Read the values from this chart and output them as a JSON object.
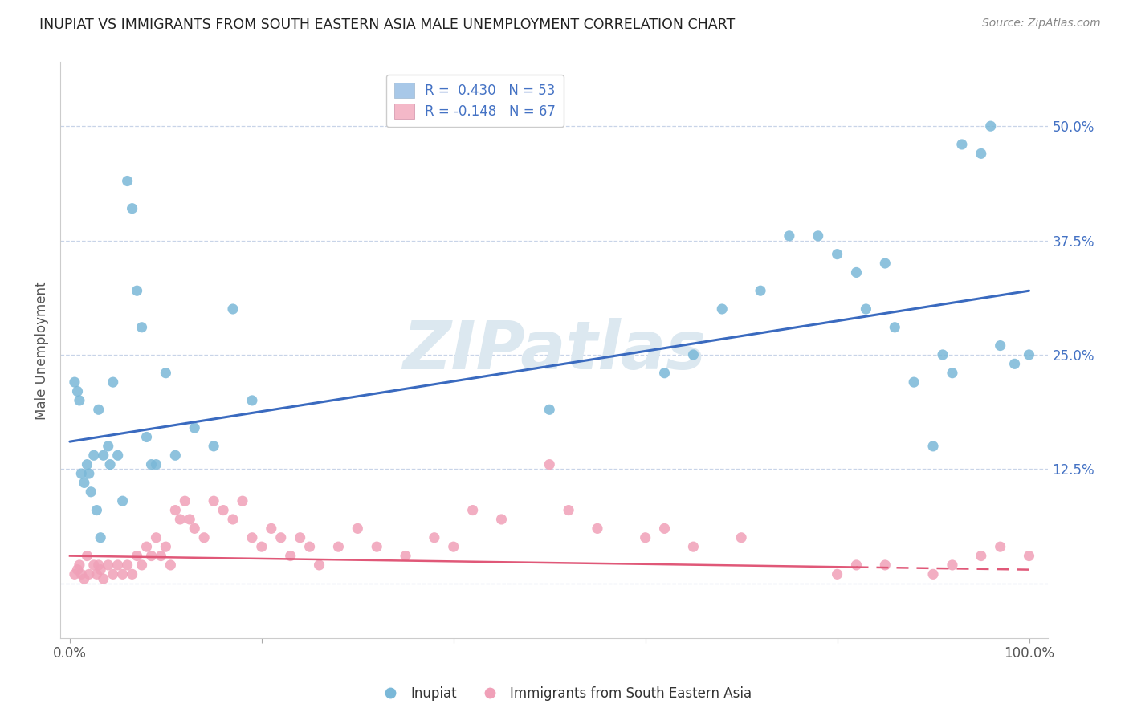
{
  "title": "INUPIAT VS IMMIGRANTS FROM SOUTH EASTERN ASIA MALE UNEMPLOYMENT CORRELATION CHART",
  "source": "Source: ZipAtlas.com",
  "ylabel": "Male Unemployment",
  "xlim": [
    -0.01,
    1.02
  ],
  "ylim": [
    -0.06,
    0.57
  ],
  "x_ticks": [
    0.0,
    0.2,
    0.4,
    0.6,
    0.8,
    1.0
  ],
  "x_tick_labels": [
    "0.0%",
    "",
    "",
    "",
    "",
    "100.0%"
  ],
  "y_ticks": [
    0.0,
    0.125,
    0.25,
    0.375,
    0.5
  ],
  "y_tick_labels": [
    "",
    "12.5%",
    "25.0%",
    "37.5%",
    "50.0%"
  ],
  "legend_r1_label": "R =  0.430   N = 53",
  "legend_r2_label": "R = -0.148   N = 67",
  "legend_patch1_color": "#a8c8e8",
  "legend_patch2_color": "#f4b8c8",
  "inupiat_color": "#7ab8d8",
  "immigrant_color": "#f0a0b8",
  "trendline_inupiat_color": "#3a6abf",
  "trendline_immigrant_color": "#e05878",
  "trendline_immigrant_dash": [
    6,
    4
  ],
  "background_color": "#ffffff",
  "grid_color": "#c8d4e8",
  "watermark_text": "ZIPatlas",
  "watermark_color": "#dce8f0",
  "inupiat_x": [
    0.005,
    0.008,
    0.01,
    0.012,
    0.015,
    0.018,
    0.02,
    0.022,
    0.025,
    0.028,
    0.03,
    0.032,
    0.035,
    0.04,
    0.042,
    0.045,
    0.05,
    0.055,
    0.06,
    0.065,
    0.07,
    0.075,
    0.08,
    0.085,
    0.09,
    0.1,
    0.11,
    0.13,
    0.15,
    0.17,
    0.19,
    0.5,
    0.62,
    0.65,
    0.68,
    0.72,
    0.75,
    0.78,
    0.8,
    0.82,
    0.83,
    0.85,
    0.86,
    0.88,
    0.9,
    0.91,
    0.92,
    0.93,
    0.95,
    0.96,
    0.97,
    0.985,
    1.0
  ],
  "inupiat_y": [
    0.22,
    0.21,
    0.2,
    0.12,
    0.11,
    0.13,
    0.12,
    0.1,
    0.14,
    0.08,
    0.19,
    0.05,
    0.14,
    0.15,
    0.13,
    0.22,
    0.14,
    0.09,
    0.44,
    0.41,
    0.32,
    0.28,
    0.16,
    0.13,
    0.13,
    0.23,
    0.14,
    0.17,
    0.15,
    0.3,
    0.2,
    0.19,
    0.23,
    0.25,
    0.3,
    0.32,
    0.38,
    0.38,
    0.36,
    0.34,
    0.3,
    0.35,
    0.28,
    0.22,
    0.15,
    0.25,
    0.23,
    0.48,
    0.47,
    0.5,
    0.26,
    0.24,
    0.25
  ],
  "immigrant_x": [
    0.005,
    0.008,
    0.01,
    0.012,
    0.015,
    0.018,
    0.02,
    0.025,
    0.028,
    0.03,
    0.032,
    0.035,
    0.04,
    0.045,
    0.05,
    0.055,
    0.06,
    0.065,
    0.07,
    0.075,
    0.08,
    0.085,
    0.09,
    0.095,
    0.1,
    0.105,
    0.11,
    0.115,
    0.12,
    0.125,
    0.13,
    0.14,
    0.15,
    0.16,
    0.17,
    0.18,
    0.19,
    0.2,
    0.21,
    0.22,
    0.23,
    0.24,
    0.25,
    0.26,
    0.28,
    0.3,
    0.32,
    0.35,
    0.38,
    0.4,
    0.42,
    0.45,
    0.5,
    0.52,
    0.55,
    0.6,
    0.62,
    0.65,
    0.7,
    0.8,
    0.82,
    0.85,
    0.9,
    0.92,
    0.95,
    0.97,
    1.0
  ],
  "immigrant_y": [
    0.01,
    0.015,
    0.02,
    0.01,
    0.005,
    0.03,
    0.01,
    0.02,
    0.01,
    0.02,
    0.015,
    0.005,
    0.02,
    0.01,
    0.02,
    0.01,
    0.02,
    0.01,
    0.03,
    0.02,
    0.04,
    0.03,
    0.05,
    0.03,
    0.04,
    0.02,
    0.08,
    0.07,
    0.09,
    0.07,
    0.06,
    0.05,
    0.09,
    0.08,
    0.07,
    0.09,
    0.05,
    0.04,
    0.06,
    0.05,
    0.03,
    0.05,
    0.04,
    0.02,
    0.04,
    0.06,
    0.04,
    0.03,
    0.05,
    0.04,
    0.08,
    0.07,
    0.13,
    0.08,
    0.06,
    0.05,
    0.06,
    0.04,
    0.05,
    0.01,
    0.02,
    0.02,
    0.01,
    0.02,
    0.03,
    0.04,
    0.03
  ],
  "trendline_inupiat_x0": 0.0,
  "trendline_inupiat_y0": 0.155,
  "trendline_inupiat_x1": 1.0,
  "trendline_inupiat_y1": 0.32,
  "trendline_immigrant_x0": 0.0,
  "trendline_immigrant_y0": 0.03,
  "trendline_immigrant_x1": 1.0,
  "trendline_immigrant_y1": 0.015
}
